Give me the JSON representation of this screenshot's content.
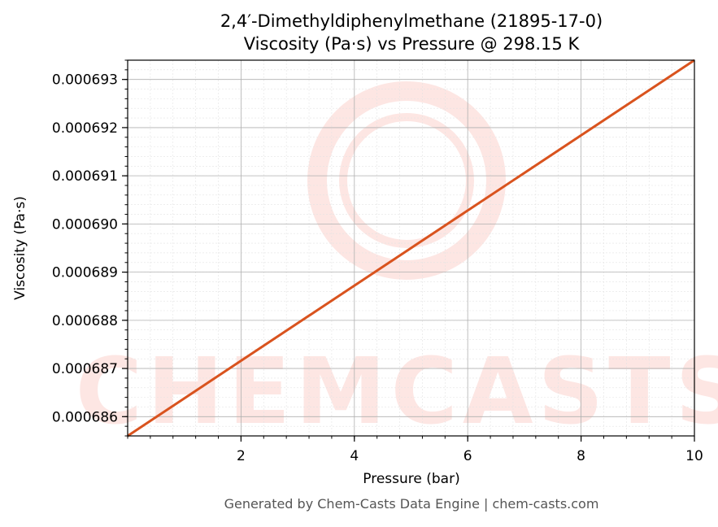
{
  "chart_data": {
    "type": "line",
    "title": "2,4′-Dimethyldiphenylmethane (21895-17-0)",
    "subtitle": "Viscosity (Pa·s) vs Pressure @ 298.15 K",
    "xlabel": "Pressure (bar)",
    "ylabel": "Viscosity (Pa·s)",
    "xlim": [
      0.0,
      10.0
    ],
    "ylim": [
      0.0006856,
      0.0006934
    ],
    "xticks": [
      2,
      4,
      6,
      8,
      10
    ],
    "xtick_labels": [
      "2",
      "4",
      "6",
      "8",
      "10"
    ],
    "yticks": [
      0.000686,
      0.000687,
      0.000688,
      0.000689,
      0.00069,
      0.000691,
      0.000692,
      0.000693
    ],
    "ytick_labels": [
      "0.000686",
      "0.000687",
      "0.000688",
      "0.000689",
      "0.000690",
      "0.000691",
      "0.000692",
      "0.000693"
    ],
    "grid": true,
    "legend": "none",
    "series": [
      {
        "color": "#d9531e",
        "x": [
          0.0,
          10.0
        ],
        "y": [
          0.0006856,
          0.0006934
        ]
      }
    ]
  },
  "watermark": {
    "text": "CHEMCASTS",
    "color": "#fde6e3"
  },
  "footer": "Generated by Chem-Casts Data Engine | chem-casts.com"
}
